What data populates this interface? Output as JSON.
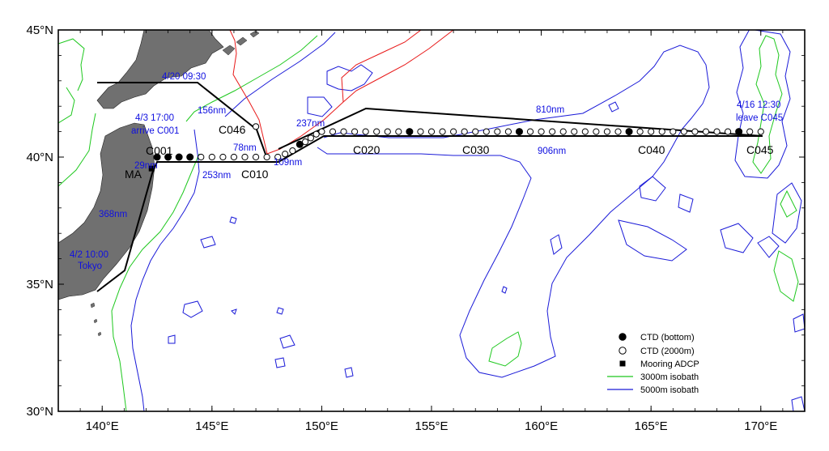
{
  "map": {
    "lon_range": [
      138,
      172
    ],
    "lat_range": [
      30,
      45
    ],
    "x_ticks": [
      {
        "value": 140,
        "label": "140°E"
      },
      {
        "value": 145,
        "label": "145°E"
      },
      {
        "value": 150,
        "label": "150°E"
      },
      {
        "value": 155,
        "label": "155°E"
      },
      {
        "value": 160,
        "label": "160°E"
      },
      {
        "value": 165,
        "label": "165°E"
      },
      {
        "value": 170,
        "label": "170°E"
      }
    ],
    "y_ticks": [
      {
        "value": 45,
        "label": "45°N"
      },
      {
        "value": 40,
        "label": "40°N"
      },
      {
        "value": 35,
        "label": "35°N"
      },
      {
        "value": 30,
        "label": "30°N"
      }
    ],
    "colors": {
      "land": "#707070",
      "isobath_3000": "#1ec81e",
      "isobath_5000": "#1a1ad8",
      "eez": "#e81818",
      "track": "#000000",
      "annotation": "#1010e0"
    }
  },
  "stations": {
    "filled_lon_lat": [
      [
        142.5,
        40
      ],
      [
        143,
        40
      ],
      [
        143.5,
        40
      ],
      [
        144,
        40
      ],
      [
        149,
        40.5
      ],
      [
        154,
        41
      ],
      [
        159,
        41
      ],
      [
        164,
        41
      ],
      [
        169,
        41
      ]
    ],
    "open_lon_lat": [
      [
        144.5,
        40
      ],
      [
        145,
        40
      ],
      [
        145.5,
        40
      ],
      [
        146,
        40
      ],
      [
        146.5,
        40
      ],
      [
        147,
        40
      ],
      [
        147.5,
        40
      ],
      [
        148,
        40
      ],
      [
        148.33,
        40.12
      ],
      [
        148.67,
        40.25
      ],
      [
        149.25,
        40.6
      ],
      [
        149.5,
        40.75
      ],
      [
        149.75,
        40.9
      ],
      [
        150,
        41
      ],
      [
        150.5,
        41
      ],
      [
        151,
        41
      ],
      [
        151.5,
        41
      ],
      [
        152,
        41
      ],
      [
        152.5,
        41
      ],
      [
        153,
        41
      ],
      [
        153.5,
        41
      ],
      [
        154.5,
        41
      ],
      [
        155,
        41
      ],
      [
        155.5,
        41
      ],
      [
        156,
        41
      ],
      [
        156.5,
        41
      ],
      [
        157,
        41
      ],
      [
        157.5,
        41
      ],
      [
        158,
        41
      ],
      [
        158.5,
        41
      ],
      [
        159.5,
        41
      ],
      [
        160,
        41
      ],
      [
        160.5,
        41
      ],
      [
        161,
        41
      ],
      [
        161.5,
        41
      ],
      [
        162,
        41
      ],
      [
        162.5,
        41
      ],
      [
        163,
        41
      ],
      [
        163.5,
        41
      ],
      [
        164.5,
        41
      ],
      [
        165,
        41
      ],
      [
        165.5,
        41
      ],
      [
        166,
        41
      ],
      [
        166.5,
        41
      ],
      [
        167,
        41
      ],
      [
        167.5,
        41
      ],
      [
        168,
        41
      ],
      [
        168.5,
        41
      ],
      [
        169.5,
        41
      ],
      [
        170,
        41
      ],
      [
        147,
        41.2
      ]
    ],
    "mooring_lon_lat": [
      142.25,
      39.55
    ]
  },
  "labels": {
    "c001": "C001",
    "c010": "C010",
    "c020": "C020",
    "c030": "C030",
    "c040": "C040",
    "c045": "C045",
    "c046": "C046",
    "ma": "MA",
    "tokyo_time": "4/2 10:00",
    "tokyo": "Tokyo",
    "arrive_time": "4/3 17:00",
    "arrive": "arrive C001",
    "hokkaido_time": "4/20 09:30",
    "leave_time": "4/16 12:30",
    "leave": "leave C045",
    "nm_368": "368nm",
    "nm_29": "29nm",
    "nm_253": "253nm",
    "nm_109": "109nm",
    "nm_906": "906nm",
    "nm_810": "810nm",
    "nm_237": "237nm",
    "nm_78": "78nm",
    "nm_156": "156nm"
  },
  "legend": {
    "ctd_bottom": "CTD (bottom)",
    "ctd_2000": "CTD (2000m)",
    "mooring": "Mooring ADCP",
    "iso3000": "3000m isobath",
    "iso5000": "5000m isobath"
  }
}
